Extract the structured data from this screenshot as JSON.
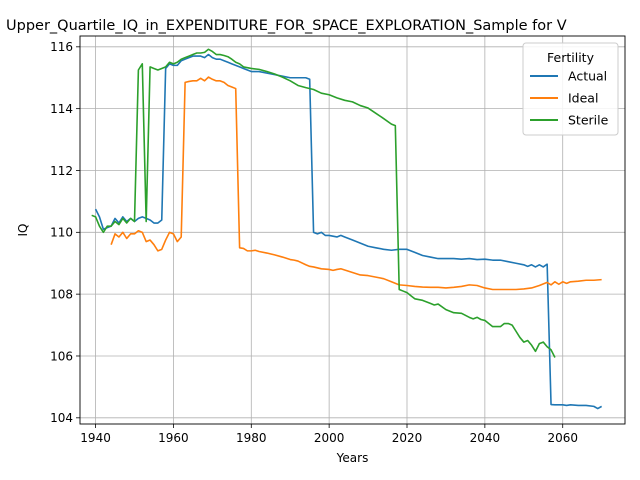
{
  "chart_data": {
    "type": "line",
    "title": "Upper_Quartile_IQ_in_EXPENDITURE_FOR_SPACE_EXPLORATION_Sample for V",
    "xlabel": "Years",
    "ylabel": "IQ",
    "xlim": [
      1936,
      2076
    ],
    "ylim": [
      103.8,
      116.35
    ],
    "xticks": [
      1940,
      1960,
      1980,
      2000,
      2020,
      2040,
      2060
    ],
    "yticks": [
      104,
      106,
      108,
      110,
      112,
      114,
      116
    ],
    "grid": true,
    "legend": {
      "title": "Fertility",
      "placement": "top-right"
    },
    "series": [
      {
        "name": "Actual",
        "color": "#1f77b4",
        "points": [
          [
            1940,
            110.75
          ],
          [
            1941,
            110.5
          ],
          [
            1942,
            110.1
          ],
          [
            1943,
            110.15
          ],
          [
            1944,
            110.2
          ],
          [
            1945,
            110.45
          ],
          [
            1946,
            110.3
          ],
          [
            1947,
            110.5
          ],
          [
            1948,
            110.35
          ],
          [
            1949,
            110.45
          ],
          [
            1950,
            110.35
          ],
          [
            1951,
            110.45
          ],
          [
            1952,
            110.5
          ],
          [
            1953,
            110.45
          ],
          [
            1954,
            110.4
          ],
          [
            1955,
            110.3
          ],
          [
            1956,
            110.3
          ],
          [
            1957,
            110.4
          ],
          [
            1958,
            115.3
          ],
          [
            1959,
            115.45
          ],
          [
            1960,
            115.4
          ],
          [
            1961,
            115.4
          ],
          [
            1962,
            115.55
          ],
          [
            1963,
            115.6
          ],
          [
            1964,
            115.65
          ],
          [
            1965,
            115.7
          ],
          [
            1966,
            115.7
          ],
          [
            1967,
            115.7
          ],
          [
            1968,
            115.65
          ],
          [
            1969,
            115.75
          ],
          [
            1970,
            115.65
          ],
          [
            1971,
            115.6
          ],
          [
            1972,
            115.6
          ],
          [
            1973,
            115.55
          ],
          [
            1974,
            115.5
          ],
          [
            1975,
            115.45
          ],
          [
            1976,
            115.4
          ],
          [
            1977,
            115.35
          ],
          [
            1978,
            115.3
          ],
          [
            1980,
            115.2
          ],
          [
            1982,
            115.2
          ],
          [
            1984,
            115.15
          ],
          [
            1986,
            115.1
          ],
          [
            1988,
            115.05
          ],
          [
            1990,
            115.0
          ],
          [
            1992,
            115.0
          ],
          [
            1994,
            115.0
          ],
          [
            1995,
            114.95
          ],
          [
            1996,
            110.0
          ],
          [
            1997,
            109.95
          ],
          [
            1998,
            110.0
          ],
          [
            1999,
            109.9
          ],
          [
            2000,
            109.9
          ],
          [
            2002,
            109.85
          ],
          [
            2003,
            109.9
          ],
          [
            2004,
            109.85
          ],
          [
            2006,
            109.75
          ],
          [
            2008,
            109.65
          ],
          [
            2010,
            109.55
          ],
          [
            2012,
            109.5
          ],
          [
            2014,
            109.45
          ],
          [
            2016,
            109.42
          ],
          [
            2018,
            109.45
          ],
          [
            2020,
            109.45
          ],
          [
            2022,
            109.35
          ],
          [
            2024,
            109.25
          ],
          [
            2026,
            109.2
          ],
          [
            2028,
            109.15
          ],
          [
            2030,
            109.15
          ],
          [
            2032,
            109.15
          ],
          [
            2034,
            109.13
          ],
          [
            2036,
            109.15
          ],
          [
            2038,
            109.12
          ],
          [
            2040,
            109.13
          ],
          [
            2042,
            109.1
          ],
          [
            2044,
            109.1
          ],
          [
            2046,
            109.05
          ],
          [
            2048,
            109.0
          ],
          [
            2050,
            108.95
          ],
          [
            2051,
            108.9
          ],
          [
            2052,
            108.95
          ],
          [
            2053,
            108.88
          ],
          [
            2054,
            108.95
          ],
          [
            2055,
            108.88
          ],
          [
            2056,
            108.97
          ],
          [
            2057,
            104.43
          ],
          [
            2058,
            104.42
          ],
          [
            2060,
            104.42
          ],
          [
            2061,
            104.4
          ],
          [
            2062,
            104.42
          ],
          [
            2064,
            104.4
          ],
          [
            2066,
            104.4
          ],
          [
            2068,
            104.37
          ],
          [
            2069,
            104.3
          ],
          [
            2070,
            104.37
          ]
        ]
      },
      {
        "name": "Ideal",
        "color": "#ff7f0e",
        "points": [
          [
            1944,
            109.6
          ],
          [
            1945,
            109.95
          ],
          [
            1946,
            109.85
          ],
          [
            1947,
            110.0
          ],
          [
            1948,
            109.8
          ],
          [
            1949,
            109.95
          ],
          [
            1950,
            109.95
          ],
          [
            1951,
            110.05
          ],
          [
            1952,
            110.0
          ],
          [
            1953,
            109.7
          ],
          [
            1954,
            109.75
          ],
          [
            1955,
            109.6
          ],
          [
            1956,
            109.4
          ],
          [
            1957,
            109.45
          ],
          [
            1958,
            109.75
          ],
          [
            1959,
            110.0
          ],
          [
            1960,
            109.95
          ],
          [
            1961,
            109.7
          ],
          [
            1962,
            109.85
          ],
          [
            1963,
            114.85
          ],
          [
            1964,
            114.88
          ],
          [
            1965,
            114.9
          ],
          [
            1966,
            114.9
          ],
          [
            1967,
            114.98
          ],
          [
            1968,
            114.9
          ],
          [
            1969,
            115.02
          ],
          [
            1970,
            114.95
          ],
          [
            1971,
            114.9
          ],
          [
            1972,
            114.9
          ],
          [
            1973,
            114.85
          ],
          [
            1974,
            114.75
          ],
          [
            1975,
            114.7
          ],
          [
            1976,
            114.65
          ],
          [
            1977,
            109.5
          ],
          [
            1978,
            109.48
          ],
          [
            1979,
            109.4
          ],
          [
            1980,
            109.4
          ],
          [
            1981,
            109.42
          ],
          [
            1982,
            109.38
          ],
          [
            1984,
            109.33
          ],
          [
            1986,
            109.27
          ],
          [
            1988,
            109.2
          ],
          [
            1990,
            109.12
          ],
          [
            1991,
            109.1
          ],
          [
            1992,
            109.07
          ],
          [
            1994,
            108.95
          ],
          [
            1995,
            108.9
          ],
          [
            1996,
            108.88
          ],
          [
            1998,
            108.82
          ],
          [
            2000,
            108.8
          ],
          [
            2001,
            108.77
          ],
          [
            2002,
            108.8
          ],
          [
            2003,
            108.82
          ],
          [
            2004,
            108.78
          ],
          [
            2006,
            108.7
          ],
          [
            2008,
            108.62
          ],
          [
            2010,
            108.6
          ],
          [
            2012,
            108.55
          ],
          [
            2014,
            108.5
          ],
          [
            2016,
            108.4
          ],
          [
            2018,
            108.3
          ],
          [
            2020,
            108.28
          ],
          [
            2022,
            108.25
          ],
          [
            2024,
            108.23
          ],
          [
            2026,
            108.22
          ],
          [
            2028,
            108.22
          ],
          [
            2030,
            108.2
          ],
          [
            2032,
            108.22
          ],
          [
            2034,
            108.25
          ],
          [
            2036,
            108.3
          ],
          [
            2038,
            108.28
          ],
          [
            2040,
            108.2
          ],
          [
            2042,
            108.15
          ],
          [
            2044,
            108.15
          ],
          [
            2046,
            108.15
          ],
          [
            2048,
            108.15
          ],
          [
            2050,
            108.17
          ],
          [
            2052,
            108.2
          ],
          [
            2054,
            108.28
          ],
          [
            2056,
            108.38
          ],
          [
            2057,
            108.3
          ],
          [
            2058,
            108.4
          ],
          [
            2059,
            108.32
          ],
          [
            2060,
            108.4
          ],
          [
            2061,
            108.35
          ],
          [
            2062,
            108.4
          ],
          [
            2064,
            108.42
          ],
          [
            2066,
            108.45
          ],
          [
            2068,
            108.45
          ],
          [
            2070,
            108.47
          ]
        ]
      },
      {
        "name": "Sterile",
        "color": "#2ca02c",
        "points": [
          [
            1939,
            110.55
          ],
          [
            1940,
            110.5
          ],
          [
            1941,
            110.2
          ],
          [
            1942,
            110.0
          ],
          [
            1943,
            110.2
          ],
          [
            1944,
            110.2
          ],
          [
            1945,
            110.35
          ],
          [
            1946,
            110.25
          ],
          [
            1947,
            110.45
          ],
          [
            1948,
            110.3
          ],
          [
            1949,
            110.45
          ],
          [
            1950,
            110.35
          ],
          [
            1951,
            115.25
          ],
          [
            1952,
            115.45
          ],
          [
            1953,
            110.35
          ],
          [
            1954,
            115.35
          ],
          [
            1955,
            115.3
          ],
          [
            1956,
            115.25
          ],
          [
            1957,
            115.3
          ],
          [
            1958,
            115.35
          ],
          [
            1959,
            115.5
          ],
          [
            1960,
            115.45
          ],
          [
            1961,
            115.5
          ],
          [
            1962,
            115.6
          ],
          [
            1963,
            115.65
          ],
          [
            1964,
            115.7
          ],
          [
            1965,
            115.75
          ],
          [
            1966,
            115.8
          ],
          [
            1967,
            115.8
          ],
          [
            1968,
            115.82
          ],
          [
            1969,
            115.92
          ],
          [
            1970,
            115.85
          ],
          [
            1971,
            115.75
          ],
          [
            1972,
            115.75
          ],
          [
            1973,
            115.72
          ],
          [
            1974,
            115.68
          ],
          [
            1975,
            115.6
          ],
          [
            1976,
            115.5
          ],
          [
            1977,
            115.45
          ],
          [
            1978,
            115.35
          ],
          [
            1980,
            115.3
          ],
          [
            1982,
            115.27
          ],
          [
            1984,
            115.2
          ],
          [
            1986,
            115.12
          ],
          [
            1988,
            115.02
          ],
          [
            1990,
            114.9
          ],
          [
            1992,
            114.75
          ],
          [
            1994,
            114.68
          ],
          [
            1996,
            114.62
          ],
          [
            1998,
            114.5
          ],
          [
            2000,
            114.45
          ],
          [
            2002,
            114.35
          ],
          [
            2004,
            114.27
          ],
          [
            2006,
            114.22
          ],
          [
            2008,
            114.1
          ],
          [
            2010,
            114.02
          ],
          [
            2012,
            113.85
          ],
          [
            2014,
            113.68
          ],
          [
            2016,
            113.5
          ],
          [
            2017,
            113.45
          ],
          [
            2018,
            108.15
          ],
          [
            2019,
            108.1
          ],
          [
            2020,
            108.05
          ],
          [
            2021,
            107.95
          ],
          [
            2022,
            107.85
          ],
          [
            2024,
            107.8
          ],
          [
            2026,
            107.7
          ],
          [
            2027,
            107.65
          ],
          [
            2028,
            107.68
          ],
          [
            2030,
            107.5
          ],
          [
            2032,
            107.4
          ],
          [
            2034,
            107.38
          ],
          [
            2036,
            107.25
          ],
          [
            2037,
            107.2
          ],
          [
            2038,
            107.25
          ],
          [
            2039,
            107.18
          ],
          [
            2040,
            107.15
          ],
          [
            2041,
            107.05
          ],
          [
            2042,
            106.95
          ],
          [
            2043,
            106.95
          ],
          [
            2044,
            106.95
          ],
          [
            2045,
            107.05
          ],
          [
            2046,
            107.05
          ],
          [
            2047,
            107.0
          ],
          [
            2048,
            106.8
          ],
          [
            2049,
            106.6
          ],
          [
            2050,
            106.45
          ],
          [
            2051,
            106.5
          ],
          [
            2052,
            106.35
          ],
          [
            2053,
            106.15
          ],
          [
            2054,
            106.4
          ],
          [
            2055,
            106.45
          ],
          [
            2056,
            106.3
          ],
          [
            2057,
            106.2
          ],
          [
            2058,
            105.95
          ]
        ]
      }
    ]
  }
}
